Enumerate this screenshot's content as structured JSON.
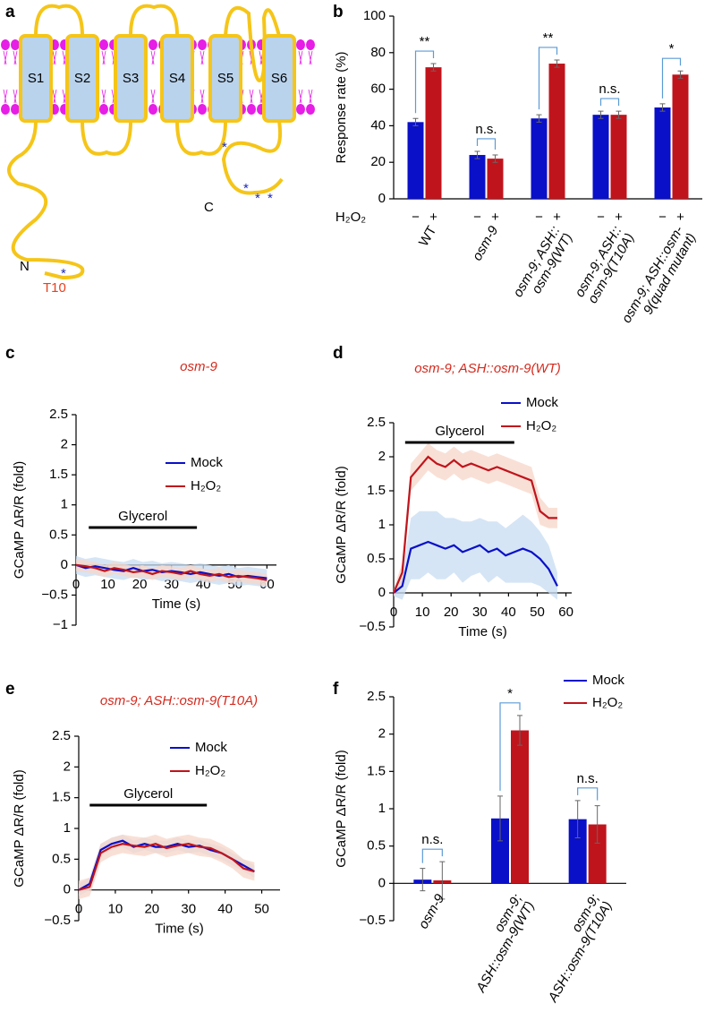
{
  "diagram": {
    "panel": "a",
    "segments": [
      "S1",
      "S2",
      "S3",
      "S4",
      "S5",
      "S6"
    ],
    "n_term": "N",
    "c_term": "C",
    "site": "T10"
  },
  "chart_data": [
    {
      "panel": "b",
      "type": "bar",
      "ylabel": "Response rate (%)",
      "ylim": [
        0,
        100
      ],
      "yticks": [
        0,
        20,
        40,
        60,
        80,
        100
      ],
      "legend_title": "H₂O₂",
      "categories": [
        [
          "WT"
        ],
        [
          "osm-9"
        ],
        [
          "osm-9; ASH::",
          "osm-9(WT)"
        ],
        [
          "osm-9; ASH::",
          "osm-9(T10A)"
        ],
        [
          "osm-9; ASH::osm-",
          "9(quad mutant)"
        ]
      ],
      "series": [
        {
          "name": "−",
          "color": "#0a10c8",
          "values": [
            42,
            24,
            44,
            46,
            50
          ],
          "errors": [
            2,
            2,
            2,
            2,
            2
          ]
        },
        {
          "name": "+",
          "color": "#c0141c",
          "values": [
            72,
            22,
            74,
            46,
            68
          ],
          "errors": [
            2,
            2,
            2,
            2,
            2
          ]
        }
      ],
      "significance": [
        "**",
        "n.s.",
        "**",
        "n.s.",
        "*"
      ]
    },
    {
      "panel": "c",
      "type": "line",
      "title": "osm-9",
      "ylabel": "GCaMP ΔR/R (fold)",
      "xlabel": "Time (s)",
      "xlim": [
        0,
        63
      ],
      "xticks": [
        0,
        10,
        20,
        30,
        40,
        50,
        60
      ],
      "ylim": [
        -1,
        2.5
      ],
      "yticks": [
        {
          "value": -1,
          "label": "−1"
        },
        {
          "value": -0.5,
          "label": "−0.5"
        },
        0,
        0.5,
        1,
        1.5,
        2,
        2.5
      ],
      "stimulus": {
        "label": "Glycerol",
        "range": [
          4,
          38
        ]
      },
      "x": [
        0,
        3,
        6,
        9,
        12,
        15,
        18,
        21,
        24,
        27,
        30,
        33,
        36,
        39,
        42,
        45,
        48,
        51,
        54,
        57,
        60
      ],
      "series": [
        {
          "name": "Mock",
          "color": "#0a10c8",
          "band_color": "#c7dcf2",
          "values": [
            0,
            -0.05,
            -0.02,
            -0.05,
            -0.08,
            -0.1,
            -0.05,
            -0.1,
            -0.08,
            -0.12,
            -0.1,
            -0.12,
            -0.15,
            -0.12,
            -0.15,
            -0.18,
            -0.15,
            -0.2,
            -0.18,
            -0.2,
            -0.22
          ],
          "errors": [
            0.15,
            0.15,
            0.15,
            0.15,
            0.15,
            0.15,
            0.15,
            0.15,
            0.15,
            0.15,
            0.15,
            0.15,
            0.15,
            0.15,
            0.15,
            0.15,
            0.15,
            0.15,
            0.15,
            0.15,
            0.15
          ]
        },
        {
          "name": "H₂O₂",
          "color": "#c0141c",
          "band_color": "#f7d6c8",
          "values": [
            0,
            -0.02,
            -0.05,
            -0.1,
            -0.05,
            -0.08,
            -0.12,
            -0.1,
            -0.15,
            -0.1,
            -0.12,
            -0.15,
            -0.1,
            -0.15,
            -0.18,
            -0.15,
            -0.2,
            -0.18,
            -0.2,
            -0.22,
            -0.25
          ],
          "errors": [
            0.1,
            0.1,
            0.1,
            0.1,
            0.1,
            0.1,
            0.1,
            0.1,
            0.1,
            0.1,
            0.1,
            0.1,
            0.1,
            0.1,
            0.1,
            0.1,
            0.1,
            0.1,
            0.1,
            0.1,
            0.1
          ]
        }
      ]
    },
    {
      "panel": "d",
      "type": "line",
      "title": "osm-9; ASH::osm-9(WT)",
      "ylabel": "GCaMP ΔR/R (fold)",
      "xlabel": "Time (s)",
      "xlim": [
        0,
        62
      ],
      "xticks": [
        0,
        10,
        20,
        30,
        40,
        50,
        60
      ],
      "ylim": [
        -0.5,
        2.5
      ],
      "yticks": [
        {
          "value": -0.5,
          "label": "−0.5"
        },
        0,
        0.5,
        1,
        1.5,
        2,
        2.5
      ],
      "stimulus": {
        "label": "Glycerol",
        "range": [
          4,
          42
        ]
      },
      "x": [
        0,
        3,
        6,
        9,
        12,
        15,
        18,
        21,
        24,
        27,
        30,
        33,
        36,
        39,
        42,
        45,
        48,
        51,
        54,
        57
      ],
      "series": [
        {
          "name": "Mock",
          "color": "#0a10c8",
          "band_color": "#c7dcf2",
          "values": [
            0,
            0.1,
            0.65,
            0.7,
            0.75,
            0.7,
            0.65,
            0.7,
            0.6,
            0.65,
            0.7,
            0.6,
            0.65,
            0.55,
            0.6,
            0.65,
            0.6,
            0.5,
            0.35,
            0.1
          ],
          "errors": [
            0.05,
            0.2,
            0.45,
            0.5,
            0.45,
            0.5,
            0.45,
            0.4,
            0.45,
            0.4,
            0.4,
            0.45,
            0.4,
            0.4,
            0.45,
            0.5,
            0.45,
            0.4,
            0.35,
            0.2
          ]
        },
        {
          "name": "H₂O₂",
          "color": "#c0141c",
          "band_color": "#f7d6c8",
          "values": [
            0,
            0.3,
            1.7,
            1.85,
            2.0,
            1.9,
            1.85,
            1.95,
            1.85,
            1.9,
            1.85,
            1.8,
            1.85,
            1.8,
            1.75,
            1.7,
            1.65,
            1.2,
            1.1,
            1.1
          ],
          "errors": [
            0.05,
            0.15,
            0.2,
            0.2,
            0.2,
            0.2,
            0.2,
            0.2,
            0.2,
            0.2,
            0.2,
            0.2,
            0.2,
            0.2,
            0.2,
            0.2,
            0.2,
            0.2,
            0.15,
            0.15
          ]
        }
      ]
    },
    {
      "panel": "e",
      "type": "line",
      "title": "osm-9; ASH::osm-9(T10A)",
      "ylabel": "GCaMP ΔR/R (fold)",
      "xlabel": "Time (s)",
      "xlim": [
        0,
        55
      ],
      "xticks": [
        0,
        10,
        20,
        30,
        40,
        50
      ],
      "ylim": [
        -0.5,
        2.5
      ],
      "yticks": [
        {
          "value": -0.5,
          "label": "−0.5"
        },
        0,
        0.5,
        1,
        1.5,
        2,
        2.5
      ],
      "stimulus": {
        "label": "Glycerol",
        "range": [
          3,
          35
        ]
      },
      "x": [
        0,
        3,
        6,
        9,
        12,
        15,
        18,
        21,
        24,
        27,
        30,
        33,
        36,
        39,
        42,
        45,
        48
      ],
      "series": [
        {
          "name": "Mock",
          "color": "#0a10c8",
          "band_color": "#c7dcf2",
          "values": [
            0,
            0.1,
            0.65,
            0.75,
            0.8,
            0.7,
            0.75,
            0.7,
            0.7,
            0.75,
            0.7,
            0.72,
            0.65,
            0.6,
            0.5,
            0.4,
            0.3
          ],
          "errors": [
            0.1,
            0.1,
            0.1,
            0.1,
            0.1,
            0.1,
            0.1,
            0.1,
            0.1,
            0.1,
            0.1,
            0.1,
            0.1,
            0.1,
            0.1,
            0.1,
            0.1
          ]
        },
        {
          "name": "H₂O₂",
          "color": "#c0141c",
          "band_color": "#f7d6c8",
          "values": [
            0,
            0.05,
            0.6,
            0.7,
            0.75,
            0.72,
            0.7,
            0.75,
            0.68,
            0.72,
            0.75,
            0.7,
            0.68,
            0.6,
            0.5,
            0.35,
            0.3
          ],
          "errors": [
            0.15,
            0.15,
            0.15,
            0.15,
            0.15,
            0.15,
            0.15,
            0.15,
            0.15,
            0.15,
            0.15,
            0.15,
            0.15,
            0.15,
            0.15,
            0.15,
            0.15
          ]
        }
      ]
    },
    {
      "panel": "f",
      "type": "bar",
      "ylabel": "GCaMP ΔR/R (fold)",
      "ylim": [
        -0.5,
        2.5
      ],
      "yticks": [
        {
          "value": -0.5,
          "label": "−0.5"
        },
        0,
        0.5,
        1,
        1.5,
        2,
        2.5
      ],
      "categories": [
        [
          "osm-9"
        ],
        [
          "osm-9;",
          "ASH::osm-9(WT)"
        ],
        [
          "osm-9;",
          "ASH::osm-9(T10A)"
        ]
      ],
      "series": [
        {
          "name": "Mock",
          "color": "#0a10c8",
          "values": [
            0.05,
            0.87,
            0.86
          ],
          "errors": [
            0.15,
            0.3,
            0.25
          ]
        },
        {
          "name": "H₂O₂",
          "color": "#c0141c",
          "values": [
            0.04,
            2.05,
            0.79
          ],
          "errors": [
            0.25,
            0.2,
            0.25
          ]
        }
      ],
      "significance": [
        "n.s.",
        "*",
        "n.s."
      ]
    }
  ]
}
